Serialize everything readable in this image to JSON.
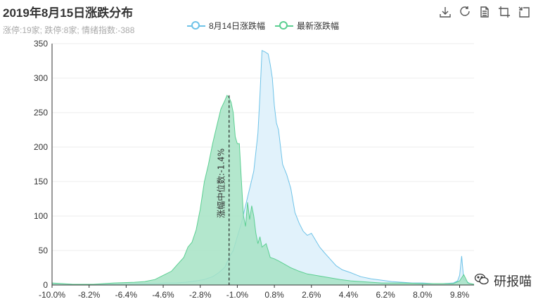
{
  "title": "2019年8月15日涨跌分布",
  "subtitle": "涨停:19家; 跌停:8家; 情绪指数:-388",
  "toolbox": [
    {
      "name": "download-icon"
    },
    {
      "name": "refresh-icon"
    },
    {
      "name": "data-view-icon"
    },
    {
      "name": "crop-icon"
    },
    {
      "name": "restore-icon"
    }
  ],
  "watermark": {
    "text": "研报喵",
    "icon": "wechat-icon"
  },
  "chart_data": {
    "type": "area",
    "x_ticks": [
      "-10.0%",
      "-8.2%",
      "-6.4%",
      "-4.6%",
      "-2.8%",
      "-1.0%",
      "0.8%",
      "2.6%",
      "4.4%",
      "6.2%",
      "8.0%",
      "9.8%"
    ],
    "xlim": [
      -10.0,
      10.5
    ],
    "ylim": [
      0,
      350
    ],
    "y_ticks": [
      0,
      50,
      100,
      150,
      200,
      250,
      300,
      350
    ],
    "median_label": "涨幅中位数:-1.4%",
    "median_x": -1.4,
    "series": [
      {
        "name": "8月14日涨跌幅",
        "color": "#6fc3e8",
        "fill": "#dff1fb",
        "points": [
          [
            -10.0,
            2
          ],
          [
            -9.0,
            1
          ],
          [
            -8.0,
            1
          ],
          [
            -7.0,
            1
          ],
          [
            -6.0,
            2
          ],
          [
            -5.0,
            2
          ],
          [
            -4.5,
            3
          ],
          [
            -4.0,
            3
          ],
          [
            -3.5,
            4
          ],
          [
            -3.0,
            6
          ],
          [
            -2.6,
            8
          ],
          [
            -2.2,
            12
          ],
          [
            -1.9,
            18
          ],
          [
            -1.6,
            26
          ],
          [
            -1.4,
            40
          ],
          [
            -1.2,
            50
          ],
          [
            -1.0,
            70
          ],
          [
            -0.8,
            90
          ],
          [
            -0.6,
            115
          ],
          [
            -0.4,
            140
          ],
          [
            -0.2,
            165
          ],
          [
            0.0,
            220
          ],
          [
            0.1,
            275
          ],
          [
            0.2,
            340
          ],
          [
            0.35,
            338
          ],
          [
            0.5,
            335
          ],
          [
            0.6,
            320
          ],
          [
            0.7,
            300
          ],
          [
            0.8,
            260
          ],
          [
            0.9,
            235
          ],
          [
            1.0,
            225
          ],
          [
            1.2,
            175
          ],
          [
            1.4,
            160
          ],
          [
            1.6,
            140
          ],
          [
            1.8,
            105
          ],
          [
            2.0,
            90
          ],
          [
            2.2,
            78
          ],
          [
            2.4,
            72
          ],
          [
            2.6,
            75
          ],
          [
            2.8,
            65
          ],
          [
            3.0,
            55
          ],
          [
            3.2,
            48
          ],
          [
            3.5,
            38
          ],
          [
            3.8,
            28
          ],
          [
            4.1,
            22
          ],
          [
            4.5,
            18
          ],
          [
            5.0,
            12
          ],
          [
            5.5,
            9
          ],
          [
            6.0,
            7
          ],
          [
            6.5,
            5
          ],
          [
            7.0,
            4
          ],
          [
            7.5,
            3
          ],
          [
            8.0,
            3
          ],
          [
            8.5,
            2
          ],
          [
            9.0,
            2
          ],
          [
            9.5,
            3
          ],
          [
            9.7,
            6
          ],
          [
            9.8,
            14
          ],
          [
            9.9,
            42
          ],
          [
            10.0,
            8
          ],
          [
            10.3,
            2
          ],
          [
            10.5,
            1
          ]
        ]
      },
      {
        "name": "最新涨跌幅",
        "color": "#5ccf92",
        "fill": "#a6e3c4",
        "points": [
          [
            -10.0,
            3
          ],
          [
            -9.5,
            2
          ],
          [
            -9.0,
            1
          ],
          [
            -8.0,
            1
          ],
          [
            -7.0,
            3
          ],
          [
            -6.0,
            4
          ],
          [
            -5.5,
            5
          ],
          [
            -5.0,
            8
          ],
          [
            -4.6,
            14
          ],
          [
            -4.2,
            20
          ],
          [
            -3.9,
            30
          ],
          [
            -3.6,
            40
          ],
          [
            -3.4,
            55
          ],
          [
            -3.2,
            62
          ],
          [
            -3.0,
            80
          ],
          [
            -2.8,
            110
          ],
          [
            -2.6,
            150
          ],
          [
            -2.4,
            175
          ],
          [
            -2.2,
            205
          ],
          [
            -2.0,
            230
          ],
          [
            -1.8,
            255
          ],
          [
            -1.6,
            268
          ],
          [
            -1.5,
            275
          ],
          [
            -1.4,
            272
          ],
          [
            -1.3,
            265
          ],
          [
            -1.2,
            250
          ],
          [
            -1.1,
            215
          ],
          [
            -1.0,
            205
          ],
          [
            -0.9,
            205
          ],
          [
            -0.8,
            150
          ],
          [
            -0.7,
            100
          ],
          [
            -0.6,
            85
          ],
          [
            -0.5,
            120
          ],
          [
            -0.4,
            95
          ],
          [
            -0.3,
            115
          ],
          [
            -0.2,
            100
          ],
          [
            -0.1,
            75
          ],
          [
            0.0,
            60
          ],
          [
            0.1,
            70
          ],
          [
            0.2,
            55
          ],
          [
            0.4,
            60
          ],
          [
            0.6,
            40
          ],
          [
            0.8,
            38
          ],
          [
            1.0,
            35
          ],
          [
            1.3,
            30
          ],
          [
            1.6,
            25
          ],
          [
            2.0,
            20
          ],
          [
            2.4,
            16
          ],
          [
            2.8,
            14
          ],
          [
            3.2,
            12
          ],
          [
            3.6,
            10
          ],
          [
            4.0,
            8
          ],
          [
            4.5,
            6
          ],
          [
            5.0,
            5
          ],
          [
            5.5,
            4
          ],
          [
            6.0,
            3
          ],
          [
            7.0,
            3
          ],
          [
            8.0,
            2
          ],
          [
            9.0,
            2
          ],
          [
            9.5,
            2
          ],
          [
            9.8,
            6
          ],
          [
            10.0,
            15
          ],
          [
            10.2,
            3
          ],
          [
            10.5,
            1
          ]
        ]
      }
    ]
  }
}
